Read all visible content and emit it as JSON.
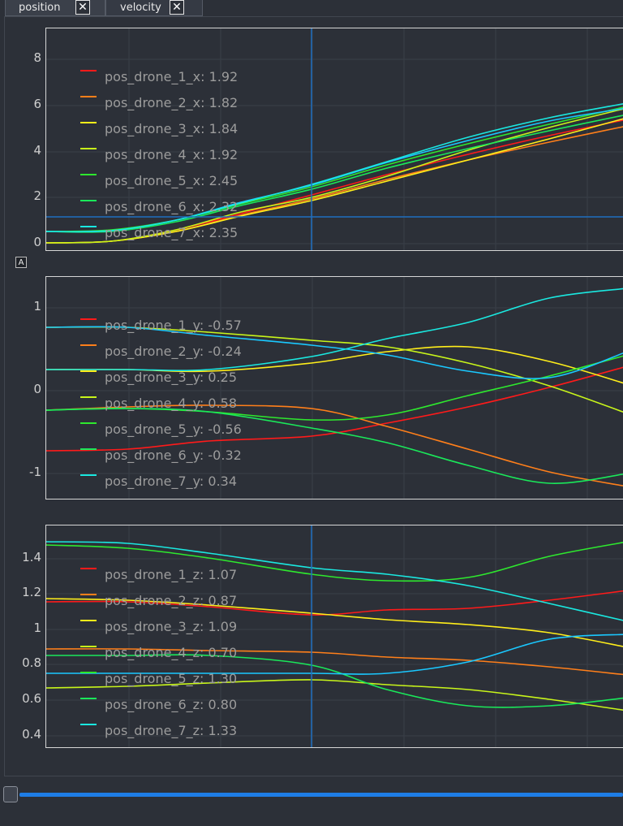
{
  "tabs": [
    {
      "label": "position",
      "close": "✕",
      "active": true
    },
    {
      "label": "velocity",
      "close": "✕",
      "active": false
    }
  ],
  "autoscale_icon": "A",
  "colors": {
    "drone_1": "#ff1a1a",
    "drone_2": "#ff7f1a",
    "drone_3": "#ffee1a",
    "drone_4": "#c8f51a",
    "drone_5": "#2ee82e",
    "drone_6": "#1ae85a",
    "drone_7": "#1ae8e0",
    "drone_7_alt": "#1ac8ff",
    "cursor": "#1e6fbf",
    "grid": "#3a3f48",
    "slider": "#1e7de6"
  },
  "plots": [
    {
      "id": "x",
      "yticks": [
        "8",
        "6",
        "4",
        "2",
        "0"
      ],
      "legend": [
        {
          "label": "pos_drone_1_x: 1.92",
          "color": "#ff1a1a"
        },
        {
          "label": "pos_drone_2_x: 1.82",
          "color": "#ff7f1a"
        },
        {
          "label": "pos_drone_3_x: 1.84",
          "color": "#ffee1a"
        },
        {
          "label": "pos_drone_4_x: 1.92",
          "color": "#c8f51a"
        },
        {
          "label": "pos_drone_5_x: 2.45",
          "color": "#2ee82e"
        },
        {
          "label": "pos_drone_6_x: 2.32",
          "color": "#1ae85a"
        },
        {
          "label": "pos_drone_7_x: 2.35",
          "color": "#1ae8e0"
        }
      ]
    },
    {
      "id": "y",
      "yticks": [
        "1",
        "0",
        "-1"
      ],
      "legend": [
        {
          "label": "pos_drone_1_y: -0.57",
          "color": "#ff1a1a"
        },
        {
          "label": "pos_drone_2_y: -0.24",
          "color": "#ff7f1a"
        },
        {
          "label": "pos_drone_3_y: 0.25",
          "color": "#ffee1a"
        },
        {
          "label": "pos_drone_4_y: 0.58",
          "color": "#c8f51a"
        },
        {
          "label": "pos_drone_5_y: -0.56",
          "color": "#2ee82e"
        },
        {
          "label": "pos_drone_6_y: -0.32",
          "color": "#1ae85a"
        },
        {
          "label": "pos_drone_7_y: 0.34",
          "color": "#1ae8e0"
        }
      ]
    },
    {
      "id": "z",
      "yticks": [
        "1.4",
        "1.2",
        "1",
        "0.8",
        "0.6",
        "0.4"
      ],
      "legend": [
        {
          "label": "pos_drone_1_z: 1.07",
          "color": "#ff1a1a"
        },
        {
          "label": "pos_drone_2_z: 0.87",
          "color": "#ff7f1a"
        },
        {
          "label": "pos_drone_3_z: 1.09",
          "color": "#ffee1a"
        },
        {
          "label": "pos_drone_4_z: 0.70",
          "color": "#c8f51a"
        },
        {
          "label": "pos_drone_5_z: 1.30",
          "color": "#2ee82e"
        },
        {
          "label": "pos_drone_6_z: 0.80",
          "color": "#1ae85a"
        },
        {
          "label": "pos_drone_7_z: 1.33",
          "color": "#1ae8e0"
        }
      ]
    }
  ]
}
